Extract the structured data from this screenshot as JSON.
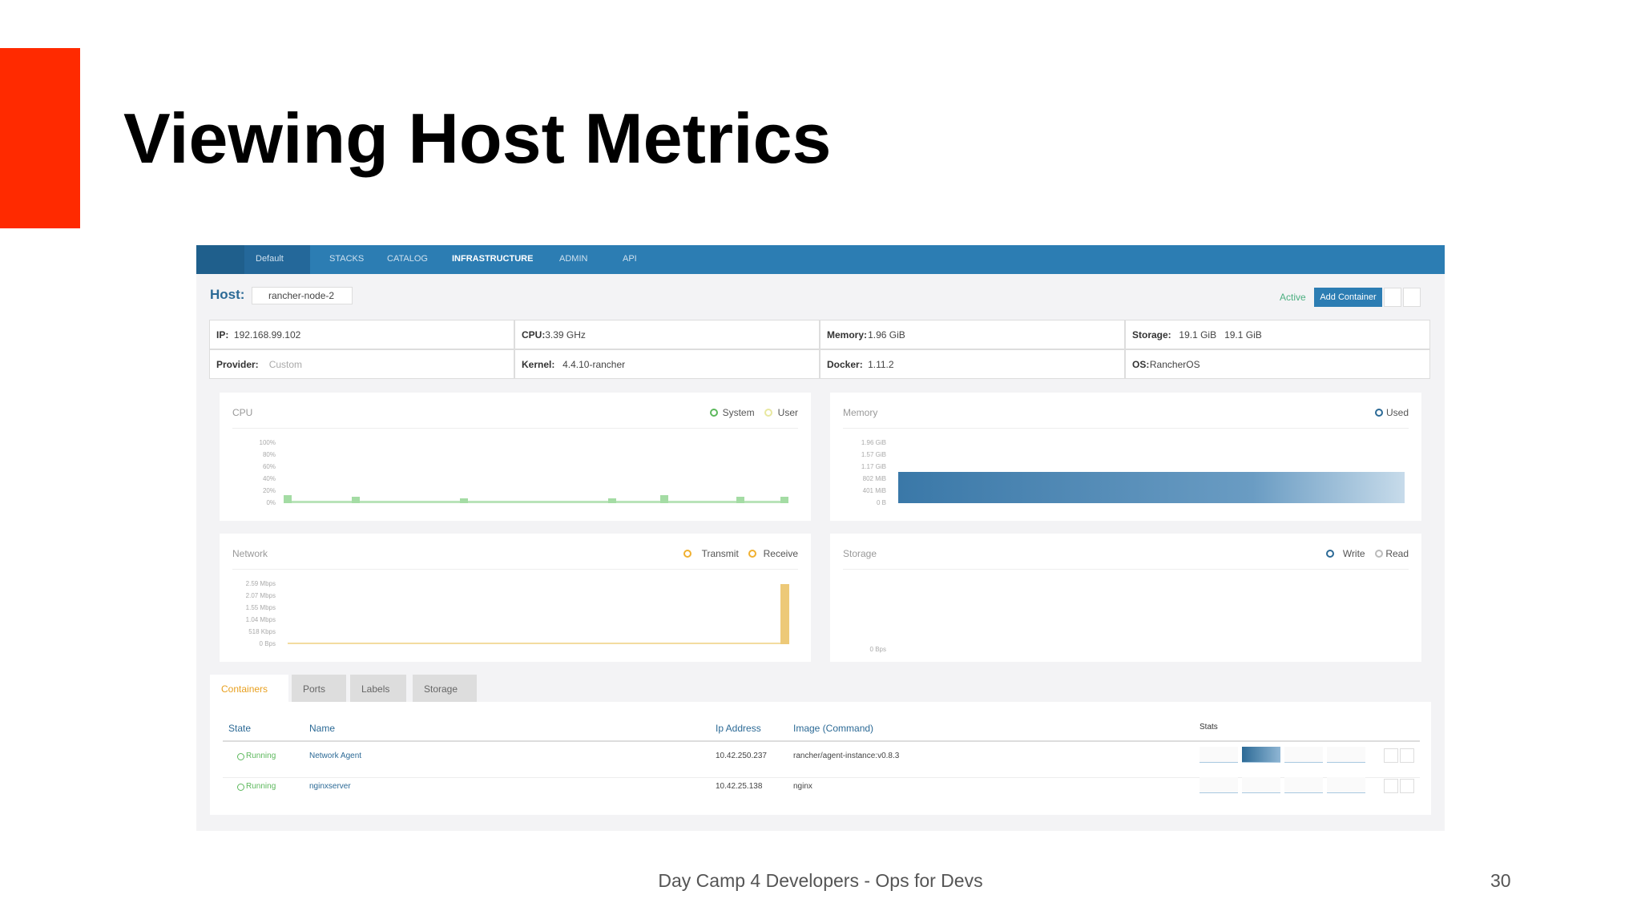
{
  "slide": {
    "title": "Viewing Host Metrics",
    "footer": "Day Camp 4 Developers - Ops for Devs",
    "page_number": "30"
  },
  "nav": {
    "items": [
      "Default",
      "STACKS",
      "CATALOG",
      "INFRASTRUCTURE",
      "ADMIN",
      "API"
    ]
  },
  "host": {
    "label": "Host:",
    "name": "rancher-node-2",
    "state": "Active",
    "button": "Add Container"
  },
  "info": {
    "rows": [
      [
        {
          "label": "IP:",
          "value": "192.168.99.102"
        },
        {
          "label": "CPU:",
          "value": "3.39 GHz"
        },
        {
          "label": "Memory:",
          "value": "1.96 GiB"
        },
        {
          "label": "Storage:",
          "value": "19.1 GiB   19.1 GiB"
        }
      ],
      [
        {
          "label": "Provider:",
          "value": "Custom"
        },
        {
          "label": "Kernel:",
          "value": "4.4.10-rancher"
        },
        {
          "label": "Docker:",
          "value": "1.11.2"
        },
        {
          "label": "OS:",
          "value": "RancherOS"
        }
      ]
    ]
  },
  "panels": [
    {
      "title": "CPU",
      "legend": [
        "System",
        "User"
      ],
      "ticks": [
        "100%",
        "80%",
        "60%",
        "40%",
        "20%",
        "0%"
      ]
    },
    {
      "title": "Memory",
      "legend": [
        "Used"
      ],
      "ticks": [
        "1.96 GiB",
        "1.57 GiB",
        "1.17 GiB",
        "802 MiB",
        "401 MiB",
        "0 B"
      ]
    },
    {
      "title": "Network",
      "legend": [
        "Transmit",
        "Receive"
      ],
      "ticks": [
        "2.59 Mbps",
        "2.07 Mbps",
        "1.55 Mbps",
        "1.04 Mbps",
        "518 Kbps",
        "0 Bps"
      ]
    },
    {
      "title": "Storage",
      "legend": [
        "Write",
        "Read"
      ],
      "ticks": [
        "0 Bps"
      ]
    }
  ],
  "tabs": [
    "Containers",
    "Ports",
    "Labels",
    "Storage"
  ],
  "table": {
    "headers": [
      "State",
      "Name",
      "Ip Address",
      "Image (Command)",
      "Stats"
    ],
    "rows": [
      [
        "Running",
        "Network Agent",
        "10.42.250.237",
        "rancher/agent-instance:v0.8.3"
      ],
      [
        "Running",
        "nginxserver",
        "10.42.25.138",
        "nginx"
      ]
    ]
  }
}
